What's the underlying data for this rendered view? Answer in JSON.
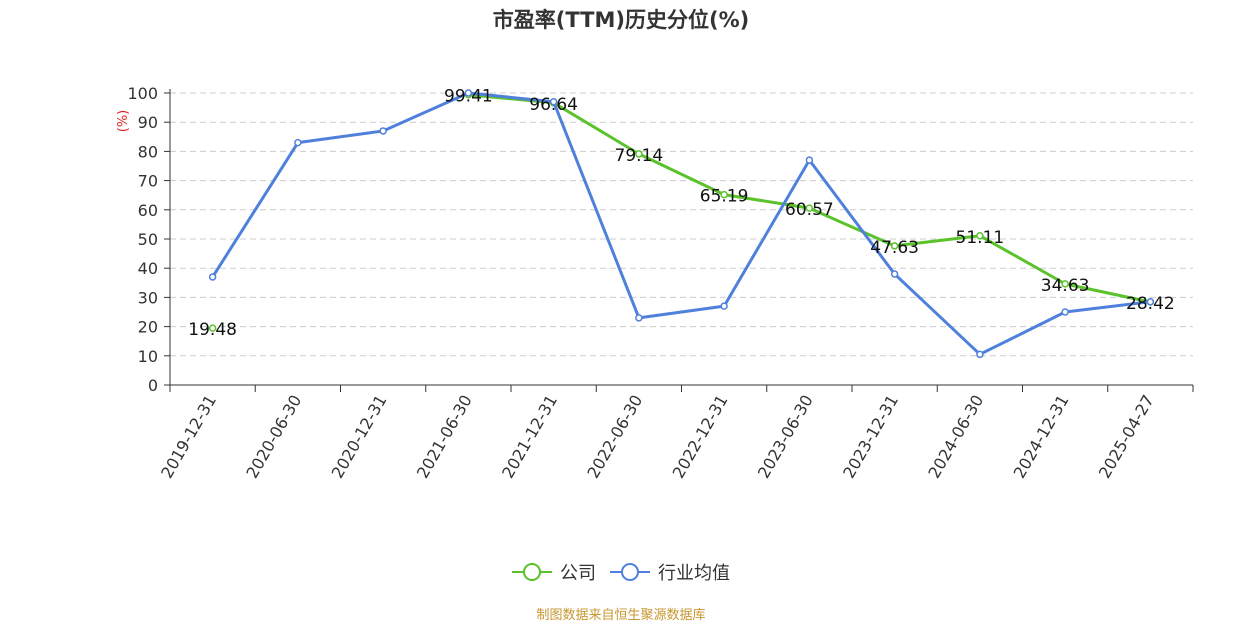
{
  "title": "市盈率(TTM)历史分位(%)",
  "source_text": "制图数据来自恒生聚源数据库",
  "colors": {
    "company": "#5ac32c",
    "industry": "#4f80db"
  },
  "legend": [
    {
      "key": "company",
      "label": "公司"
    },
    {
      "key": "industry",
      "label": "行业均值"
    }
  ],
  "chart_data": {
    "type": "line",
    "title": "市盈率(TTM)历史分位(%)",
    "ylabel": "(%)",
    "ylim": [
      0,
      100
    ],
    "yticks": [
      0,
      10,
      20,
      30,
      40,
      50,
      60,
      70,
      80,
      90,
      100
    ],
    "grid": true,
    "legend_position": "bottom",
    "categories": [
      "2019-12-31",
      "2020-06-30",
      "2020-12-31",
      "2021-06-30",
      "2021-12-31",
      "2022-06-30",
      "2022-12-31",
      "2023-06-30",
      "2023-12-31",
      "2024-06-30",
      "2024-12-31",
      "2025-04-27"
    ],
    "series": [
      {
        "name": "公司",
        "key": "company",
        "values": [
          19.48,
          null,
          null,
          99.41,
          96.64,
          79.14,
          65.19,
          60.57,
          47.63,
          51.11,
          34.63,
          28.42
        ],
        "labels": [
          "19.48",
          null,
          null,
          "99.41",
          "96.64",
          "79.14",
          "65.19",
          "60.57",
          "47.63",
          "51.11",
          "34.63",
          "28.42"
        ]
      },
      {
        "name": "行业均值",
        "key": "industry",
        "values": [
          37,
          83,
          87,
          100,
          97,
          23,
          27,
          77,
          38,
          10.5,
          25,
          28.5
        ]
      }
    ]
  }
}
